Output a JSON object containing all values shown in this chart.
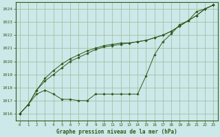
{
  "title": "Graphe pression niveau de la mer (hPa)",
  "bg_color": "#cce8e8",
  "grid_color": "#99bb99",
  "line_color": "#2d5a1b",
  "xlim": [
    -0.5,
    23.5
  ],
  "ylim": [
    1015.5,
    1024.5
  ],
  "yticks": [
    1016,
    1017,
    1018,
    1019,
    1020,
    1021,
    1022,
    1023,
    1024
  ],
  "xticks": [
    0,
    1,
    2,
    3,
    4,
    5,
    6,
    7,
    8,
    9,
    10,
    11,
    12,
    13,
    14,
    15,
    16,
    17,
    18,
    19,
    20,
    21,
    22,
    23
  ],
  "series1": [
    1016.0,
    1016.7,
    1017.5,
    1017.8,
    1017.5,
    1017.1,
    1017.1,
    1017.0,
    1017.0,
    1017.5,
    1017.5,
    1017.5,
    1017.5,
    1017.5,
    1017.5,
    1018.9,
    1020.5,
    1021.5,
    1022.1,
    1022.8,
    1023.1,
    1023.8,
    1024.0,
    1024.3
  ],
  "series2": [
    1016.0,
    1016.7,
    1017.8,
    1018.7,
    1019.3,
    1019.8,
    1020.2,
    1020.5,
    1020.8,
    1021.0,
    1021.2,
    1021.3,
    1021.4,
    1021.4,
    1021.5,
    1021.6,
    1021.8,
    1022.0,
    1022.3,
    1022.7,
    1023.1,
    1023.5,
    1024.0,
    1024.3
  ],
  "series3": [
    1016.0,
    1016.7,
    1017.8,
    1018.5,
    1019.0,
    1019.5,
    1020.0,
    1020.3,
    1020.6,
    1020.9,
    1021.1,
    1021.2,
    1021.3,
    1021.4,
    1021.5,
    1021.6,
    1021.8,
    1022.0,
    1022.3,
    1022.7,
    1023.1,
    1023.5,
    1024.0,
    1024.3
  ]
}
